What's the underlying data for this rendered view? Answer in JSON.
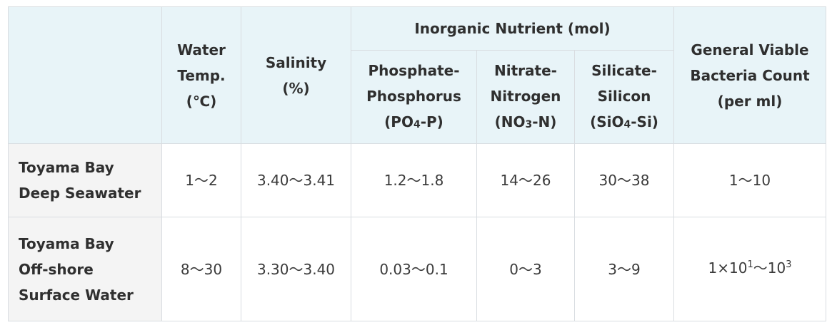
{
  "header": {
    "water_temp": [
      "Water",
      "Temp.",
      "(℃)"
    ],
    "salinity": [
      "Salinity",
      "(%)"
    ],
    "group_label": "Inorganic Nutrient (mol)",
    "phosphate": {
      "line1": "Phosphate-",
      "line2": "Phosphorus",
      "open": "(PO",
      "sub": "4",
      "close": "-P)"
    },
    "nitrate": {
      "line1": "Nitrate-",
      "line2": "Nitrogen",
      "open": "(NO",
      "sub": "3",
      "close": "-N)"
    },
    "silicate": {
      "line1": "Silicate-",
      "line2": "Silicon",
      "open": "(SiO",
      "sub": "4",
      "close": "-Si)"
    },
    "bacteria": [
      "General Viable",
      "Bacteria Count",
      "(per ml)"
    ]
  },
  "rows": [
    {
      "label": [
        "Toyama Bay",
        "Deep Seawater"
      ],
      "water_temp": "1〜2",
      "salinity": "3.40〜3.41",
      "phosphate": "1.2〜1.8",
      "nitrate": "14〜26",
      "silicate": "30〜38",
      "bacteria": "1〜10"
    },
    {
      "label": [
        "Toyama Bay",
        "Off-shore",
        "Surface Water"
      ],
      "water_temp": "8〜30",
      "salinity": "3.30〜3.40",
      "phosphate": "0.03〜0.1",
      "nitrate": "0〜3",
      "silicate": "3〜9",
      "bacteria": {
        "base": "1×10",
        "exp1": "1",
        "mid": "〜10",
        "exp2": "3"
      }
    }
  ]
}
